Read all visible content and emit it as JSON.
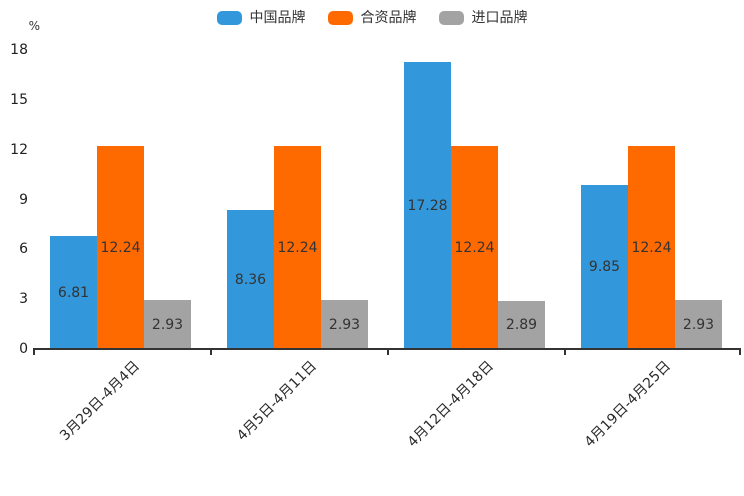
{
  "chart_data": {
    "type": "bar",
    "title": "",
    "categories": [
      "3月29日-4月4日",
      "4月5日-4月11日",
      "4月12日-4月18日",
      "4月19日-4月25日"
    ],
    "series": [
      {
        "name": "中国品牌",
        "color": "#3398db",
        "values": [
          6.81,
          8.36,
          17.28,
          9.85
        ]
      },
      {
        "name": "合资品牌",
        "color": "#ff6a00",
        "values": [
          12.24,
          12.24,
          12.24,
          12.24
        ]
      },
      {
        "name": "进口品牌",
        "color": "#a3a3a3",
        "values": [
          2.93,
          2.93,
          2.89,
          2.93
        ]
      }
    ],
    "xlabel": "",
    "ylabel": "%",
    "ylim": [
      0,
      18
    ],
    "yticks": [
      0,
      3,
      6,
      9,
      12,
      15,
      18
    ],
    "grid": false,
    "legend_position": "top",
    "value_labels": true,
    "axis_color": "#333333",
    "label_color": "#333333"
  }
}
